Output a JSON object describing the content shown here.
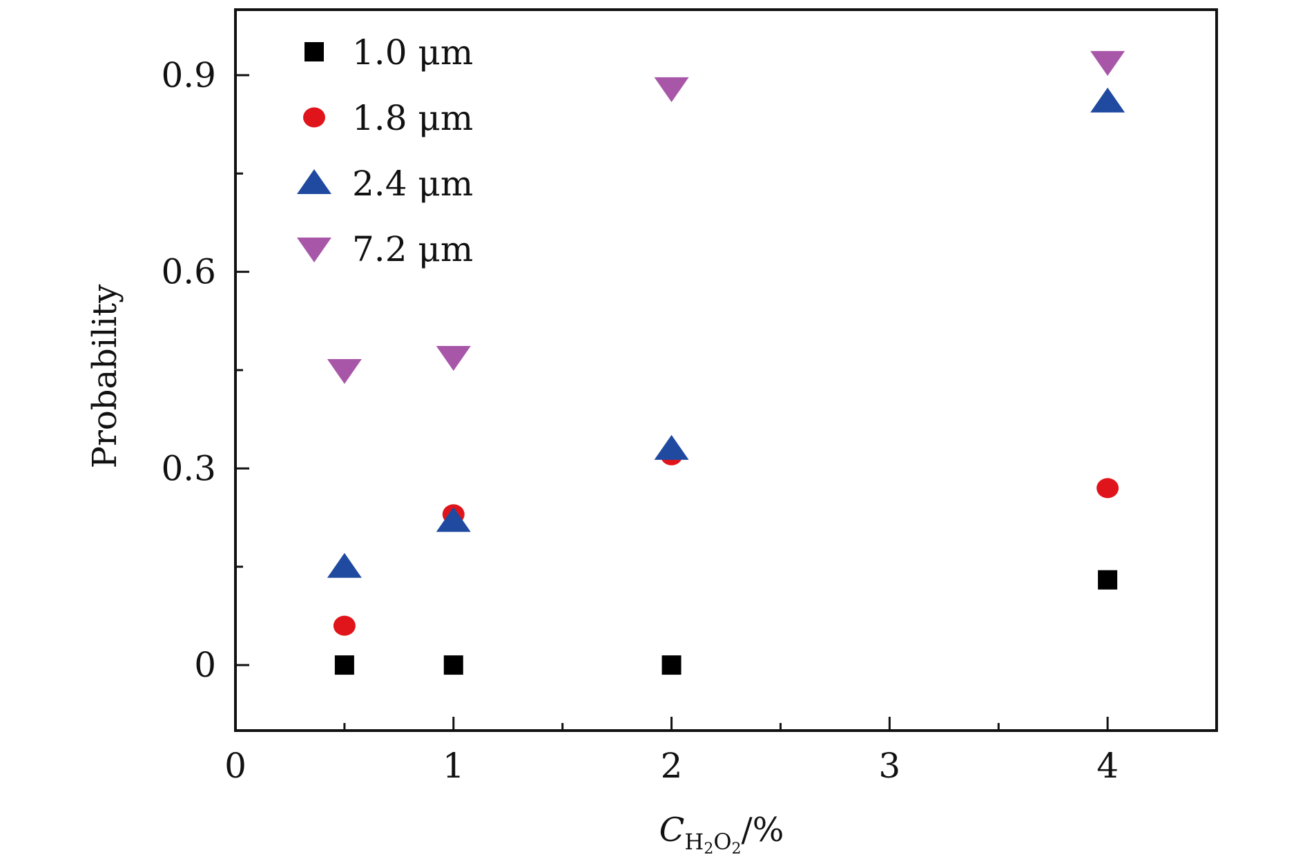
{
  "chart_data": {
    "type": "scatter",
    "title": "",
    "xlabel": {
      "main": "C",
      "sub_h": "H",
      "sub_2a": "2",
      "sub_o": "O",
      "sub_2b": "2",
      "suffix": "/%"
    },
    "ylabel": "Probability",
    "xlim": [
      0,
      4.5
    ],
    "ylim": [
      -0.1,
      1.0
    ],
    "x_ticks": [
      0,
      1,
      2,
      3,
      4
    ],
    "x_tick_labels": [
      "0",
      "1",
      "2",
      "3",
      "4"
    ],
    "y_ticks": [
      0,
      0.3,
      0.6,
      0.9
    ],
    "y_tick_labels": [
      "0",
      "0.3",
      "0.6",
      "0.9"
    ],
    "x_minor_ticks": [
      0.5,
      1.5,
      2.5,
      3.5
    ],
    "y_minor_ticks": [
      0.15,
      0.45,
      0.75
    ],
    "legend_position": "top-left",
    "series": [
      {
        "name": "1.0 μm",
        "marker": "square",
        "color": "#000000",
        "x": [
          0.5,
          1,
          2,
          4
        ],
        "y": [
          0.0,
          0.0,
          0.0,
          0.13
        ]
      },
      {
        "name": "1.8 μm",
        "marker": "circle",
        "color": "#e0151b",
        "x": [
          0.5,
          1,
          2,
          4
        ],
        "y": [
          0.06,
          0.23,
          0.32,
          0.27
        ]
      },
      {
        "name": "2.4 μm",
        "marker": "triangle-up",
        "color": "#1f4aa0",
        "x": [
          0.5,
          1,
          2,
          4
        ],
        "y": [
          0.15,
          0.22,
          0.33,
          0.86
        ]
      },
      {
        "name": "7.2 μm",
        "marker": "triangle-down",
        "color": "#a857a8",
        "x": [
          0.5,
          1,
          2,
          4
        ],
        "y": [
          0.45,
          0.47,
          0.88,
          0.92
        ]
      }
    ]
  }
}
